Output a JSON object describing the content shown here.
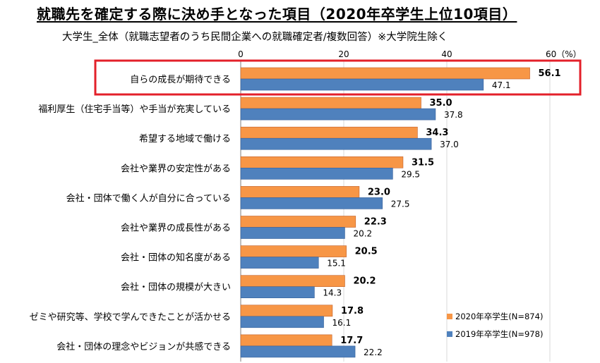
{
  "title": "就職先を確定する際に決め手となった項目（2020年卒学生上位10項目）",
  "subtitle": "大学生_全体（就職志望者のうち民間企業への就職確定者/複数回答）※大学院生除く",
  "colors": {
    "series_2020": "#F79646",
    "series_2019": "#4F81BD",
    "highlight": "#E3202A",
    "grid": "#D9D9D9",
    "axis": "#7F7F7F"
  },
  "chart_data": {
    "type": "bar",
    "orientation": "horizontal",
    "title": "就職先を確定する際に決め手となった項目（2020年卒学生上位10項目）",
    "categories": [
      "自らの成長が期待できる",
      "福利厚生（住宅手当等）や手当が充実している",
      "希望する地域で働ける",
      "会社や業界の安定性がある",
      "会社・団体で働く人が自分に合っている",
      "会社や業界の成長性がある",
      "会社・団体の知名度がある",
      "会社・団体の規模が大きい",
      "ゼミや研究等、学校で学んできたことが活かせる",
      "会社・団体の理念やビジョンが共感できる"
    ],
    "series": [
      {
        "name": "2020年卒学生(N=874)",
        "color": "#F79646",
        "values": [
          56.1,
          35.0,
          34.3,
          31.5,
          23.0,
          22.3,
          20.5,
          20.2,
          17.8,
          17.7
        ],
        "labels": [
          "56.1",
          "35.0",
          "34.3",
          "31.5",
          "23.0",
          "22.3",
          "20.5",
          "20.2",
          "17.8",
          "17.7"
        ]
      },
      {
        "name": "2019年卒学生(N=978)",
        "color": "#4F81BD",
        "values": [
          47.1,
          37.8,
          37.0,
          29.5,
          27.5,
          20.2,
          15.1,
          14.3,
          16.1,
          22.2
        ],
        "labels": [
          "47.1",
          "37.8",
          "37.0",
          "29.5",
          "27.5",
          "20.2",
          "15.1",
          "14.3",
          "16.1",
          "22.2"
        ]
      }
    ],
    "xlim": [
      0,
      60
    ],
    "ticks": [
      {
        "value": 0,
        "label": "0"
      },
      {
        "value": 20,
        "label": "20"
      },
      {
        "value": 40,
        "label": "40"
      },
      {
        "value": 60,
        "label": "60（%）"
      }
    ],
    "grid": true,
    "legend": "bottom-right",
    "highlighted_category": "自らの成長が期待できる"
  }
}
